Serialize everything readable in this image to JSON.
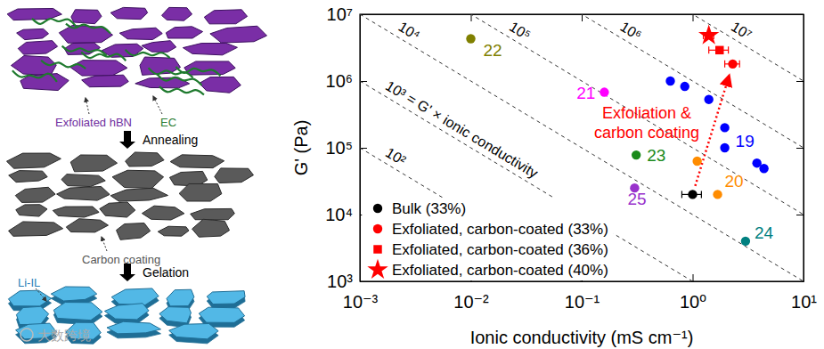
{
  "chart_data": {
    "type": "scatter",
    "x_label": "Ionic conductivity (mS cm⁻¹)",
    "y_label": "G' (Pa)",
    "log": true,
    "xlim": [
      0.001,
      10
    ],
    "ylim": [
      1000,
      10000000
    ],
    "xticks": [
      {
        "value": 0.001,
        "label": "10⁻³"
      },
      {
        "value": 0.01,
        "label": "10⁻²"
      },
      {
        "value": 0.1,
        "label": "10⁻¹"
      },
      {
        "value": 1,
        "label": "10⁰"
      },
      {
        "value": 10,
        "label": "10¹"
      }
    ],
    "yticks": [
      {
        "value": 1000,
        "label": "10³"
      },
      {
        "value": 10000,
        "label": "10⁴"
      },
      {
        "value": 100000,
        "label": "10⁵"
      },
      {
        "value": 1000000,
        "label": "10⁶"
      },
      {
        "value": 10000000,
        "label": "10⁷"
      }
    ],
    "legend": "lower left",
    "series": [
      {
        "name": "Bulk (33%)",
        "color": "#000000",
        "marker": "circle",
        "x": [
          1.0
        ],
        "values": [
          20000
        ],
        "xerr": [
          0.2
        ]
      },
      {
        "name": "Exfoliated, carbon-coated (33%)",
        "color": "#ff0000",
        "marker": "circle",
        "x": [
          2.3
        ],
        "values": [
          1800000
        ],
        "xerr": [
          0.35
        ]
      },
      {
        "name": "Exfoliated, carbon-coated (36%)",
        "color": "#ff0000",
        "marker": "square",
        "x": [
          1.75
        ],
        "values": [
          2900000
        ],
        "xerr": [
          0.35
        ]
      },
      {
        "name": "Exfoliated, carbon-coated (40%)",
        "color": "#ff0000",
        "marker": "star",
        "x": [
          1.4
        ],
        "values": [
          4800000
        ],
        "xerr": [
          0.15
        ]
      }
    ],
    "references": [
      {
        "label": "22",
        "color": "#808000",
        "x": [
          0.01
        ],
        "values": [
          4300000
        ]
      },
      {
        "label": "21",
        "color": "#ff00ff",
        "x": [
          0.16
        ],
        "values": [
          680000
        ]
      },
      {
        "label": "23",
        "color": "#1a8a1a",
        "x": [
          0.31
        ],
        "values": [
          78000
        ]
      },
      {
        "label": "25",
        "color": "#9933cc",
        "x": [
          0.3
        ],
        "values": [
          25000
        ]
      },
      {
        "label": "19",
        "color": "#0000ff",
        "x": [
          0.63,
          0.85,
          1.4,
          1.95,
          1.95,
          3.8,
          4.4
        ],
        "values": [
          1000000,
          830000,
          530000,
          200000,
          100000,
          59000,
          49000
        ]
      },
      {
        "label": "20",
        "color": "#ff8c00",
        "x": [
          1.1,
          1.68
        ],
        "values": [
          63000,
          20000
        ]
      },
      {
        "label": "24",
        "color": "#008080",
        "x": [
          3.0
        ],
        "values": [
          4000
        ]
      }
    ],
    "iso_lines": [
      {
        "value": 100,
        "label": "10²"
      },
      {
        "value": 1000,
        "label": "10³ = G' × ionic conductivity"
      },
      {
        "value": 10000,
        "label": "10⁴"
      },
      {
        "value": 100000,
        "label": "10⁵"
      },
      {
        "value": 1000000,
        "label": "10⁶"
      },
      {
        "value": 10000000,
        "label": "10⁷"
      }
    ],
    "annotation": {
      "text": [
        "Exfoliation &",
        "carbon coating"
      ],
      "color": "#ff0000"
    }
  },
  "diagram": {
    "components": [
      "Exfoliated hBN",
      "EC",
      "Carbon coating",
      "Li-IL"
    ],
    "steps": [
      "Annealing",
      "Gelation"
    ],
    "watermark": "大数跨境"
  }
}
